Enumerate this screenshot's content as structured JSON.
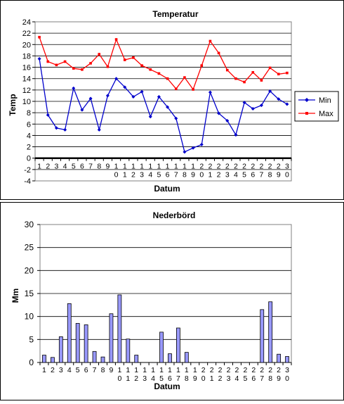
{
  "chart_data": [
    {
      "type": "line",
      "title": "Temperatur",
      "xlabel": "Datum",
      "ylabel": "Temp",
      "ylim": [
        -4,
        24
      ],
      "ytick_step": 2,
      "grid": true,
      "legend": "right",
      "categories": [
        [
          "1"
        ],
        [
          "2"
        ],
        [
          "3"
        ],
        [
          "4"
        ],
        [
          "5"
        ],
        [
          "6"
        ],
        [
          "7"
        ],
        [
          "8"
        ],
        [
          "9"
        ],
        [
          "1",
          "0"
        ],
        [
          "1",
          "1"
        ],
        [
          "1",
          "2"
        ],
        [
          "1",
          "3"
        ],
        [
          "1",
          "4"
        ],
        [
          "1",
          "5"
        ],
        [
          "1",
          "6"
        ],
        [
          "1",
          "7"
        ],
        [
          "1",
          "8"
        ],
        [
          "1",
          "9"
        ],
        [
          "2",
          "0"
        ],
        [
          "2",
          "1"
        ],
        [
          "2",
          "2"
        ],
        [
          "2",
          "3"
        ],
        [
          "2",
          "4"
        ],
        [
          "2",
          "5"
        ],
        [
          "2",
          "6"
        ],
        [
          "2",
          "7"
        ],
        [
          "2",
          "8"
        ],
        [
          "2",
          "9"
        ],
        [
          "3",
          "0"
        ]
      ],
      "series": [
        {
          "name": "Min",
          "color": "#0000cc",
          "values": [
            17.5,
            7.6,
            5.3,
            5.0,
            12.3,
            8.5,
            10.5,
            5.0,
            11.0,
            14.0,
            12.5,
            10.8,
            11.7,
            7.3,
            10.8,
            9.0,
            7.0,
            1.1,
            1.8,
            2.4,
            11.6,
            7.9,
            6.6,
            4.1,
            9.8,
            8.7,
            9.3,
            11.8,
            10.4,
            9.5
          ]
        },
        {
          "name": "Max",
          "color": "#ff0000",
          "values": [
            21.3,
            17.0,
            16.4,
            17.0,
            15.8,
            15.6,
            16.7,
            18.3,
            16.1,
            20.9,
            17.3,
            17.7,
            16.3,
            15.6,
            14.9,
            14.0,
            12.2,
            14.2,
            12.1,
            16.3,
            20.6,
            18.5,
            15.5,
            14.0,
            13.4,
            15.1,
            13.7,
            15.9,
            14.8,
            15.0
          ]
        }
      ]
    },
    {
      "type": "bar",
      "title": "Nederbörd",
      "xlabel": "Datum",
      "ylabel": "Mm",
      "ylim": [
        0,
        30
      ],
      "ytick_step": 5,
      "grid": true,
      "bar_color": "#9999ff",
      "categories": [
        [
          "1"
        ],
        [
          "2"
        ],
        [
          "3"
        ],
        [
          "4"
        ],
        [
          "5"
        ],
        [
          "6"
        ],
        [
          "7"
        ],
        [
          "8"
        ],
        [
          "9"
        ],
        [
          "1",
          "0"
        ],
        [
          "1",
          "1"
        ],
        [
          "1",
          "2"
        ],
        [
          "1",
          "3"
        ],
        [
          "1",
          "4"
        ],
        [
          "1",
          "5"
        ],
        [
          "1",
          "6"
        ],
        [
          "1",
          "7"
        ],
        [
          "1",
          "8"
        ],
        [
          "1",
          "9"
        ],
        [
          "2",
          "0"
        ],
        [
          "2",
          "1"
        ],
        [
          "2",
          "2"
        ],
        [
          "2",
          "3"
        ],
        [
          "2",
          "4"
        ],
        [
          "2",
          "5"
        ],
        [
          "2",
          "6"
        ],
        [
          "2",
          "7"
        ],
        [
          "2",
          "8"
        ],
        [
          "2",
          "9"
        ],
        [
          "3",
          "0"
        ]
      ],
      "values": [
        1.6,
        1.1,
        5.6,
        12.8,
        8.5,
        8.2,
        2.4,
        1.2,
        10.6,
        14.7,
        5.1,
        1.6,
        0,
        0,
        6.6,
        1.9,
        7.5,
        2.2,
        0,
        0,
        0,
        0,
        0,
        0,
        0,
        0,
        11.5,
        13.2,
        1.8,
        1.3
      ]
    }
  ]
}
